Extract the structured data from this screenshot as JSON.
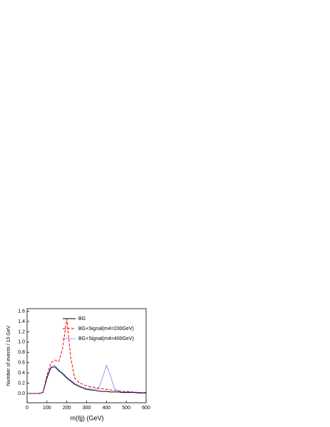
{
  "chart_data": {
    "type": "line",
    "xlabel": "m(ℓjj)  (GeV)",
    "ylabel": "Number of events  / 10 GeV",
    "x": [
      0,
      20,
      40,
      60,
      80,
      100,
      120,
      140,
      160,
      180,
      200,
      220,
      240,
      260,
      280,
      300,
      320,
      340,
      360,
      380,
      400,
      420,
      440,
      460,
      480,
      500,
      520,
      540,
      560,
      580,
      600
    ],
    "series": [
      {
        "name": "BG",
        "color": "#000000",
        "dash": "solid",
        "values": [
          0,
          0,
          0,
          0,
          0.02,
          0.3,
          0.5,
          0.52,
          0.44,
          0.38,
          0.3,
          0.24,
          0.18,
          0.14,
          0.11,
          0.08,
          0.07,
          0.06,
          0.05,
          0.04,
          0.04,
          0.03,
          0.03,
          0.03,
          0.02,
          0.02,
          0.02,
          0.02,
          0.01,
          0.01,
          0.01
        ]
      },
      {
        "name": "BG+Signal(m4=200GeV)",
        "color": "#ff0000",
        "dash": "dashed",
        "values": [
          0,
          0,
          0,
          0,
          0.02,
          0.35,
          0.6,
          0.65,
          0.62,
          0.9,
          1.45,
          0.7,
          0.3,
          0.22,
          0.18,
          0.15,
          0.13,
          0.12,
          0.1,
          0.09,
          0.08,
          0.07,
          0.06,
          0.05,
          0.04,
          0.04,
          0.03,
          0.03,
          0.02,
          0.02,
          0.02
        ]
      },
      {
        "name": "BG+Signal(m4=400GeV)",
        "color": "#0000ff",
        "dash": "dotted",
        "values": [
          0,
          0,
          0,
          0,
          0.02,
          0.32,
          0.52,
          0.55,
          0.46,
          0.4,
          0.32,
          0.26,
          0.2,
          0.16,
          0.12,
          0.1,
          0.09,
          0.08,
          0.1,
          0.3,
          0.55,
          0.35,
          0.1,
          0.05,
          0.04,
          0.03,
          0.03,
          0.02,
          0.02,
          0.02,
          0.01
        ]
      }
    ],
    "xlim": [
      0,
      600
    ],
    "xticks": [
      0,
      100,
      200,
      300,
      400,
      500,
      600
    ],
    "ylim": [
      -0.18,
      1.65
    ],
    "yticks": [
      {
        "value": 0,
        "label": "0.0"
      },
      {
        "value": 0.2,
        "label": "0.2"
      },
      {
        "value": 0.4,
        "label": "0.4"
      },
      {
        "value": 0.6,
        "label": "0.6"
      },
      {
        "value": 0.8,
        "label": "0.8"
      },
      {
        "value": 1,
        "label": "1.0"
      },
      {
        "value": 1.2,
        "label": "1.2"
      },
      {
        "value": 1.4,
        "label": "1.4"
      },
      {
        "value": 1.6,
        "label": "1.6"
      }
    ],
    "legend": "upper right"
  }
}
